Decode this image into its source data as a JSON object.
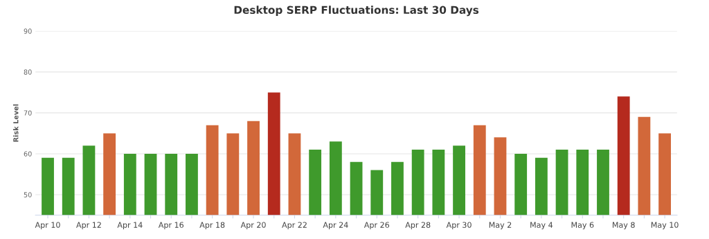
{
  "chart_data": {
    "type": "bar",
    "title": "Desktop SERP Fluctuations: Last 30 Days",
    "ylabel": "Risk Level",
    "categories": [
      "Apr 10",
      null,
      "Apr 12",
      null,
      "Apr 14",
      null,
      "Apr 16",
      null,
      "Apr 18",
      null,
      "Apr 20",
      null,
      "Apr 22",
      null,
      "Apr 24",
      null,
      "Apr 26",
      null,
      "Apr 28",
      null,
      "Apr 30",
      null,
      "May 2",
      null,
      "May 4",
      null,
      "May 6",
      null,
      "May 8",
      null,
      "May 10"
    ],
    "values": [
      59,
      59,
      62,
      65,
      60,
      60,
      60,
      60,
      67,
      65,
      68,
      75,
      65,
      61,
      63,
      58,
      56,
      58,
      61,
      61,
      62,
      67,
      64,
      60,
      59,
      61,
      61,
      61,
      74,
      69,
      65
    ],
    "colors": [
      "#3f9a2c",
      "#3f9a2c",
      "#3f9a2c",
      "#d2683a",
      "#3f9a2c",
      "#3f9a2c",
      "#3f9a2c",
      "#3f9a2c",
      "#d2683a",
      "#d2683a",
      "#d2683a",
      "#b52a1e",
      "#d2683a",
      "#3f9a2c",
      "#3f9a2c",
      "#3f9a2c",
      "#3f9a2c",
      "#3f9a2c",
      "#3f9a2c",
      "#3f9a2c",
      "#3f9a2c",
      "#d2683a",
      "#d2683a",
      "#3f9a2c",
      "#3f9a2c",
      "#3f9a2c",
      "#3f9a2c",
      "#3f9a2c",
      "#b52a1e",
      "#d2683a",
      "#d2683a"
    ],
    "ylim": [
      45,
      90
    ],
    "yticks": [
      50,
      60,
      70,
      80,
      90
    ],
    "grid": "y"
  }
}
